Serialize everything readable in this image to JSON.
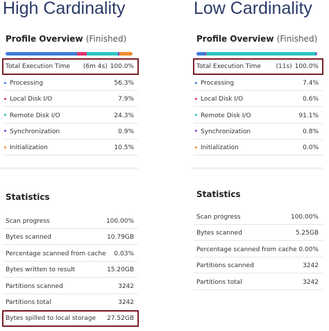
{
  "panels": [
    {
      "title": "High Cardinality",
      "profile": {
        "heading": "Profile Overview",
        "status": "(Finished)",
        "total": {
          "label": "Total Execution Time",
          "time": "(6m 4s)",
          "percent": "100.0%"
        },
        "rows": [
          {
            "label": "Processing",
            "value": 56.3,
            "value_label": "56.3%",
            "color": "#3f7fd8"
          },
          {
            "label": "Local Disk I/O",
            "value": 7.9,
            "value_label": "7.9%",
            "color": "#e0346c"
          },
          {
            "label": "Remote Disk I/O",
            "value": 24.3,
            "value_label": "24.3%",
            "color": "#2cc4c4"
          },
          {
            "label": "Synchronization",
            "value": 0.9,
            "value_label": "0.9%",
            "color": "#8b3fc8"
          },
          {
            "label": "Initialization",
            "value": 10.5,
            "value_label": "10.5%",
            "color": "#f08a2c"
          }
        ]
      },
      "statistics": {
        "heading": "Statistics",
        "rows": [
          {
            "label": "Scan progress",
            "value": "100.00%"
          },
          {
            "label": "Bytes scanned",
            "value": "10.79GB"
          },
          {
            "label": "Percentage scanned from cache",
            "value": "0.03%"
          },
          {
            "label": "Bytes written to result",
            "value": "15.20GB"
          },
          {
            "label": "Partitions scanned",
            "value": "3242"
          },
          {
            "label": "Partitions total",
            "value": "3242"
          },
          {
            "label": "Bytes spilled to local storage",
            "value": "27.52GB"
          }
        ]
      }
    },
    {
      "title": "Low Cardinality",
      "profile": {
        "heading": "Profile Overview",
        "status": "(Finished)",
        "total": {
          "label": "Total Execution Time",
          "time": "(11s)",
          "percent": "100.0%"
        },
        "rows": [
          {
            "label": "Processing",
            "value": 7.4,
            "value_label": "7.4%",
            "color": "#3f7fd8"
          },
          {
            "label": "Local Disk I/O",
            "value": 0.6,
            "value_label": "0.6%",
            "color": "#e0346c"
          },
          {
            "label": "Remote Disk I/O",
            "value": 91.1,
            "value_label": "91.1%",
            "color": "#2cc4c4"
          },
          {
            "label": "Synchronization",
            "value": 0.8,
            "value_label": "0.8%",
            "color": "#8b3fc8"
          },
          {
            "label": "Initialization",
            "value": 0.0,
            "value_label": "0.0%",
            "color": "#f08a2c"
          }
        ]
      },
      "statistics": {
        "heading": "Statistics",
        "rows": [
          {
            "label": "Scan progress",
            "value": "100.00%"
          },
          {
            "label": "Bytes scanned",
            "value": "5.25GB"
          },
          {
            "label": "Percentage scanned from cache",
            "value": "0.00%"
          },
          {
            "label": "Partitions scanned",
            "value": "3242"
          },
          {
            "label": "Partitions total",
            "value": "3242"
          }
        ]
      }
    }
  ]
}
